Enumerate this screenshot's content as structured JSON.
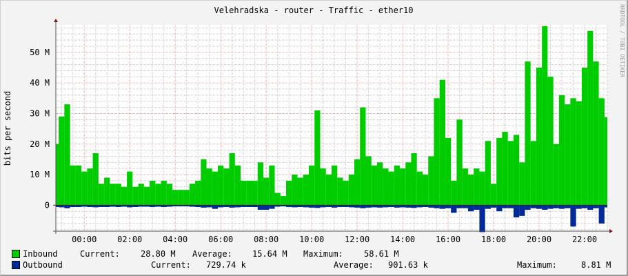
{
  "chart_data": {
    "type": "area",
    "title": "Velehradska - router - Traffic - ether10",
    "ylabel": "bits per second",
    "watermark": "RRDTOOL / TOBI OETIKER",
    "ylim": [
      -8.5,
      59
    ],
    "y_unit": "M",
    "y_ticks": [
      0,
      10,
      20,
      30,
      40,
      50
    ],
    "y_tick_labels": [
      "0",
      "10 M",
      "20 M",
      "30 M",
      "40 M",
      "50 M"
    ],
    "x_tick_labels": [
      "00:00",
      "02:00",
      "04:00",
      "06:00",
      "08:00",
      "10:00",
      "12:00",
      "14:00",
      "16:00",
      "18:00",
      "20:00",
      "22:00"
    ],
    "grid": true,
    "colors": {
      "inbound": "#00CC00",
      "outbound": "#002A97",
      "major_grid": "#F0A0A0",
      "minor_grid": "#C8C8C8",
      "axis_arrow": "#7F1F1F"
    },
    "x": [
      "22:45",
      "23:00",
      "23:15",
      "23:30",
      "23:45",
      "00:00",
      "00:15",
      "00:30",
      "00:45",
      "01:00",
      "01:15",
      "01:30",
      "01:45",
      "02:00",
      "02:15",
      "02:30",
      "02:45",
      "03:00",
      "03:15",
      "03:30",
      "03:45",
      "04:00",
      "04:15",
      "04:30",
      "04:45",
      "05:00",
      "05:15",
      "05:30",
      "05:45",
      "06:00",
      "06:15",
      "06:30",
      "06:45",
      "07:00",
      "07:15",
      "07:30",
      "07:45",
      "08:00",
      "08:15",
      "08:30",
      "08:45",
      "09:00",
      "09:15",
      "09:30",
      "09:45",
      "10:00",
      "10:15",
      "10:30",
      "10:45",
      "11:00",
      "11:15",
      "11:30",
      "11:45",
      "12:00",
      "12:15",
      "12:30",
      "12:45",
      "13:00",
      "13:15",
      "13:30",
      "13:45",
      "14:00",
      "14:15",
      "14:30",
      "14:45",
      "15:00",
      "15:15",
      "15:30",
      "15:45",
      "16:00",
      "16:15",
      "16:30",
      "16:45",
      "17:00",
      "17:15",
      "17:30",
      "17:45",
      "18:00",
      "18:15",
      "18:30",
      "18:45",
      "19:00",
      "19:15",
      "19:30",
      "19:45",
      "20:00",
      "20:15",
      "20:30",
      "20:45",
      "21:00",
      "21:15",
      "21:30",
      "21:45",
      "22:00",
      "22:15",
      "22:30",
      "22:45",
      "23:00"
    ],
    "series": [
      {
        "name": "Inbound",
        "direction": "positive",
        "values": [
          20,
          29,
          33,
          13,
          13,
          11,
          12,
          17,
          7,
          9,
          7,
          7,
          6,
          11,
          6,
          7,
          6,
          8,
          7,
          8,
          7,
          5,
          5,
          5,
          7,
          8,
          15,
          12,
          11,
          13,
          12,
          17,
          13,
          8,
          8,
          8,
          14,
          9,
          13,
          4,
          3,
          8,
          10,
          9,
          10,
          13,
          31,
          12,
          10,
          13,
          9,
          8,
          10,
          15,
          32,
          16,
          13,
          14,
          12,
          11,
          13,
          12,
          14,
          17,
          11,
          10,
          16,
          35,
          41,
          22,
          8,
          28,
          12,
          10,
          12,
          11,
          21,
          7,
          22,
          24,
          21,
          23,
          14,
          47,
          21,
          45,
          58.6,
          42,
          20,
          36,
          33,
          35,
          34,
          45,
          57,
          47,
          35,
          28.8
        ]
      },
      {
        "name": "Outbound",
        "direction": "negative",
        "values": [
          0.6,
          0.7,
          1.0,
          0.6,
          0.6,
          0.5,
          0.6,
          0.7,
          0.6,
          0.6,
          0.5,
          0.6,
          0.5,
          0.7,
          0.6,
          0.5,
          0.5,
          0.6,
          0.5,
          0.6,
          0.5,
          0.4,
          0.4,
          0.4,
          0.5,
          0.6,
          0.8,
          0.7,
          1.2,
          0.7,
          0.6,
          0.8,
          0.7,
          0.6,
          0.6,
          0.6,
          1.5,
          1.5,
          1.2,
          0.5,
          0.4,
          0.6,
          0.7,
          0.6,
          0.7,
          0.8,
          0.9,
          0.7,
          0.6,
          0.8,
          0.6,
          0.6,
          0.7,
          0.8,
          1.0,
          0.8,
          0.7,
          0.8,
          0.7,
          0.6,
          0.8,
          0.7,
          0.8,
          0.9,
          0.7,
          0.6,
          0.8,
          1.0,
          1.2,
          1.0,
          2.5,
          1.0,
          1.0,
          2.0,
          1.5,
          8.81,
          1.2,
          0.8,
          2.0,
          1.0,
          1.0,
          4.0,
          3.5,
          1.5,
          1.0,
          1.2,
          1.5,
          1.2,
          1.0,
          1.2,
          1.0,
          7.0,
          1.2,
          1.0,
          1.5,
          1.0,
          6.0,
          0.73
        ]
      }
    ]
  },
  "legend": {
    "inbound": {
      "label": "Inbound",
      "current_label": "Current:",
      "current": "28.80 M",
      "average_label": "Average:",
      "average": "15.64 M",
      "maximum_label": "Maximum:",
      "maximum": "58.61 M"
    },
    "outbound": {
      "label": "Outbound",
      "current_label": "Current:",
      "current": "729.74 k",
      "average_label": "Average:",
      "average": "901.63 k",
      "maximum_label": "Maximum:",
      "maximum": "8.81 M"
    }
  }
}
